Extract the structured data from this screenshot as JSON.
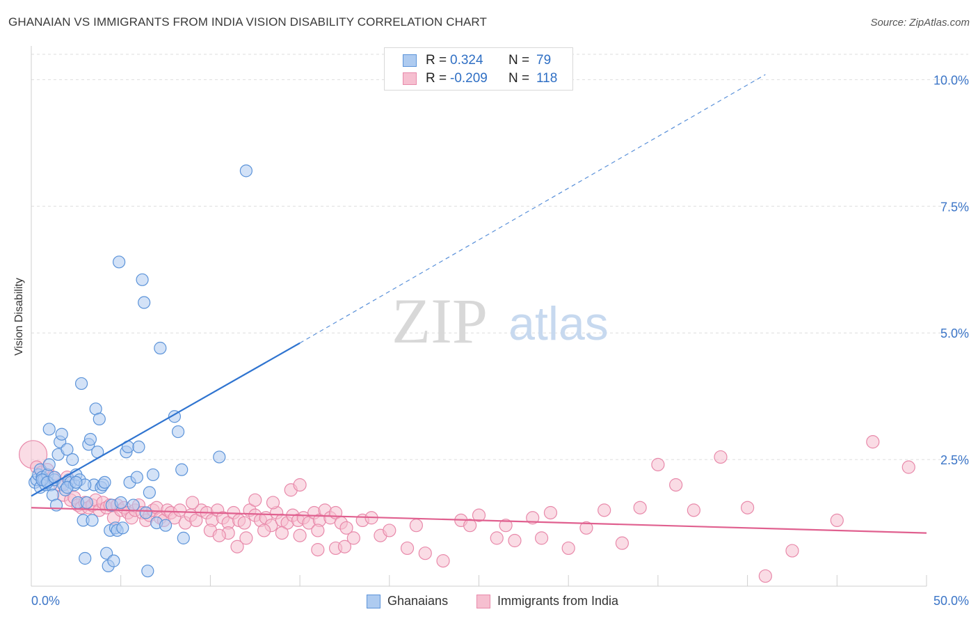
{
  "title": "GHANAIAN VS IMMIGRANTS FROM INDIA VISION DISABILITY CORRELATION CHART",
  "source": "Source: ZipAtlas.com",
  "watermark": {
    "zip": "ZIP",
    "atlas": "atlas"
  },
  "legend": {
    "series1": {
      "r_label": "R =",
      "r_value": "0.324",
      "n_label": "N =",
      "n_value": "79"
    },
    "series2": {
      "r_label": "R =",
      "r_value": "-0.209",
      "n_label": "N =",
      "n_value": "118"
    }
  },
  "colors": {
    "blue_fill": "#aecbf0",
    "blue_stroke": "#5b93d9",
    "blue_line": "#2f74d0",
    "pink_fill": "#f6bfd0",
    "pink_stroke": "#e889aa",
    "pink_line": "#e0608f",
    "axis_text": "#3b75c7",
    "grid": "#dedede"
  },
  "chart_data": {
    "type": "scatter",
    "title": "GHANAIAN VS IMMIGRANTS FROM INDIA VISION DISABILITY CORRELATION CHART",
    "xlabel": "",
    "ylabel": "Vision Disability",
    "xlim": [
      0,
      50
    ],
    "ylim": [
      0,
      10.5
    ],
    "x_tick_labels": [
      "0.0%",
      "50.0%"
    ],
    "y_ticks": [
      2.5,
      5.0,
      7.5,
      10.0
    ],
    "y_tick_labels": [
      "2.5%",
      "5.0%",
      "7.5%",
      "10.0%"
    ],
    "legend_position": "top-center",
    "series": [
      {
        "name": "Ghanaians",
        "r": 0.324,
        "n": 79,
        "trend": {
          "x0": 0,
          "y0": 1.78,
          "x1": 15,
          "y1": 4.8,
          "dashed_to_x": 41,
          "dashed_to_y": 10.1
        },
        "points": [
          [
            0.2,
            2.05
          ],
          [
            0.3,
            2.1
          ],
          [
            0.4,
            2.2
          ],
          [
            0.5,
            2.3
          ],
          [
            0.5,
            1.95
          ],
          [
            0.6,
            2.15
          ],
          [
            0.7,
            2.1
          ],
          [
            0.8,
            2.0
          ],
          [
            0.9,
            2.2
          ],
          [
            1.0,
            2.4
          ],
          [
            1.1,
            2.0
          ],
          [
            1.2,
            1.8
          ],
          [
            1.3,
            2.1
          ],
          [
            1.4,
            1.6
          ],
          [
            1.5,
            2.6
          ],
          [
            1.6,
            2.85
          ],
          [
            1.7,
            3.0
          ],
          [
            1.8,
            2.0
          ],
          [
            1.9,
            1.9
          ],
          [
            2.0,
            2.7
          ],
          [
            2.1,
            2.1
          ],
          [
            2.2,
            2.05
          ],
          [
            2.3,
            2.5
          ],
          [
            2.4,
            2.0
          ],
          [
            2.5,
            2.2
          ],
          [
            2.6,
            1.65
          ],
          [
            2.7,
            2.1
          ],
          [
            2.8,
            4.0
          ],
          [
            2.9,
            1.3
          ],
          [
            3.0,
            0.55
          ],
          [
            3.1,
            1.65
          ],
          [
            3.2,
            2.8
          ],
          [
            3.3,
            2.9
          ],
          [
            3.4,
            1.3
          ],
          [
            3.5,
            2.0
          ],
          [
            3.6,
            3.5
          ],
          [
            3.7,
            2.65
          ],
          [
            3.8,
            3.3
          ],
          [
            3.9,
            1.95
          ],
          [
            4.0,
            2.0
          ],
          [
            4.1,
            2.05
          ],
          [
            4.2,
            0.65
          ],
          [
            4.3,
            0.4
          ],
          [
            4.4,
            1.1
          ],
          [
            4.5,
            1.6
          ],
          [
            4.6,
            0.5
          ],
          [
            4.7,
            1.15
          ],
          [
            4.8,
            1.1
          ],
          [
            4.9,
            6.4
          ],
          [
            5.0,
            1.65
          ],
          [
            5.1,
            1.15
          ],
          [
            5.3,
            2.65
          ],
          [
            5.4,
            2.75
          ],
          [
            5.5,
            2.05
          ],
          [
            5.7,
            1.6
          ],
          [
            5.9,
            2.15
          ],
          [
            6.0,
            2.75
          ],
          [
            6.2,
            6.05
          ],
          [
            6.3,
            5.6
          ],
          [
            6.4,
            1.45
          ],
          [
            6.6,
            1.85
          ],
          [
            6.8,
            2.2
          ],
          [
            7.0,
            1.25
          ],
          [
            7.2,
            4.7
          ],
          [
            7.5,
            1.2
          ],
          [
            8.0,
            3.35
          ],
          [
            8.2,
            3.05
          ],
          [
            8.4,
            2.3
          ],
          [
            8.5,
            0.95
          ],
          [
            10.5,
            2.55
          ],
          [
            12.0,
            8.2
          ],
          [
            0.6,
            2.1
          ],
          [
            0.9,
            2.05
          ],
          [
            1.3,
            2.15
          ],
          [
            2.0,
            1.95
          ],
          [
            3.0,
            2.0
          ],
          [
            6.5,
            0.3
          ],
          [
            1.0,
            3.1
          ],
          [
            2.5,
            2.05
          ]
        ]
      },
      {
        "name": "Immigrants from India",
        "r": -0.209,
        "n": 118,
        "trend": {
          "x0": 0,
          "y0": 1.55,
          "x1": 50,
          "y1": 1.05
        },
        "points": [
          [
            0.1,
            2.6
          ],
          [
            0.3,
            2.35
          ],
          [
            0.6,
            2.25
          ],
          [
            0.9,
            2.3
          ],
          [
            1.2,
            2.15
          ],
          [
            1.6,
            2.0
          ],
          [
            1.8,
            1.8
          ],
          [
            2.0,
            2.15
          ],
          [
            2.2,
            1.7
          ],
          [
            2.4,
            1.75
          ],
          [
            2.6,
            1.6
          ],
          [
            2.8,
            1.55
          ],
          [
            3.0,
            1.65
          ],
          [
            3.2,
            1.55
          ],
          [
            3.4,
            1.6
          ],
          [
            3.6,
            1.7
          ],
          [
            3.8,
            1.5
          ],
          [
            4.0,
            1.65
          ],
          [
            4.2,
            1.55
          ],
          [
            4.4,
            1.6
          ],
          [
            4.6,
            1.35
          ],
          [
            4.8,
            1.6
          ],
          [
            5.0,
            1.5
          ],
          [
            5.2,
            1.55
          ],
          [
            5.4,
            1.45
          ],
          [
            5.6,
            1.35
          ],
          [
            5.8,
            1.5
          ],
          [
            6.0,
            1.6
          ],
          [
            6.2,
            1.45
          ],
          [
            6.4,
            1.3
          ],
          [
            6.6,
            1.4
          ],
          [
            6.8,
            1.5
          ],
          [
            7.0,
            1.55
          ],
          [
            7.2,
            1.35
          ],
          [
            7.4,
            1.3
          ],
          [
            7.6,
            1.5
          ],
          [
            7.8,
            1.45
          ],
          [
            8.0,
            1.35
          ],
          [
            8.3,
            1.5
          ],
          [
            8.6,
            1.25
          ],
          [
            8.9,
            1.4
          ],
          [
            9.2,
            1.3
          ],
          [
            9.5,
            1.5
          ],
          [
            9.8,
            1.45
          ],
          [
            10.1,
            1.3
          ],
          [
            10.4,
            1.5
          ],
          [
            10.7,
            1.35
          ],
          [
            11.0,
            1.25
          ],
          [
            11.3,
            1.45
          ],
          [
            11.6,
            1.3
          ],
          [
            11.9,
            1.25
          ],
          [
            12.2,
            1.5
          ],
          [
            12.5,
            1.4
          ],
          [
            12.8,
            1.3
          ],
          [
            13.1,
            1.35
          ],
          [
            13.4,
            1.2
          ],
          [
            13.7,
            1.45
          ],
          [
            14.0,
            1.3
          ],
          [
            14.3,
            1.25
          ],
          [
            14.6,
            1.4
          ],
          [
            14.9,
            1.3
          ],
          [
            15.2,
            1.35
          ],
          [
            15.5,
            1.25
          ],
          [
            15.8,
            1.45
          ],
          [
            16.1,
            1.3
          ],
          [
            16.4,
            1.5
          ],
          [
            16.7,
            1.35
          ],
          [
            17.0,
            1.45
          ],
          [
            17.3,
            1.25
          ],
          [
            17.6,
            1.15
          ],
          [
            9.0,
            1.65
          ],
          [
            10.0,
            1.1
          ],
          [
            11.0,
            1.05
          ],
          [
            12.0,
            0.95
          ],
          [
            13.0,
            1.1
          ],
          [
            14.0,
            1.05
          ],
          [
            15.0,
            1.0
          ],
          [
            16.0,
            1.1
          ],
          [
            17.0,
            0.75
          ],
          [
            18.0,
            0.95
          ],
          [
            10.5,
            1.0
          ],
          [
            11.5,
            0.78
          ],
          [
            12.5,
            1.7
          ],
          [
            13.5,
            1.65
          ],
          [
            14.5,
            1.9
          ],
          [
            15.0,
            2.0
          ],
          [
            16.0,
            0.72
          ],
          [
            17.5,
            0.78
          ],
          [
            18.5,
            1.3
          ],
          [
            19.0,
            1.35
          ],
          [
            19.5,
            1.0
          ],
          [
            20.0,
            1.1
          ],
          [
            21.0,
            0.75
          ],
          [
            21.5,
            1.2
          ],
          [
            22.0,
            0.65
          ],
          [
            23.0,
            0.5
          ],
          [
            24.0,
            1.3
          ],
          [
            24.5,
            1.2
          ],
          [
            25.0,
            1.4
          ],
          [
            26.0,
            0.95
          ],
          [
            26.5,
            1.2
          ],
          [
            27.0,
            0.9
          ],
          [
            28.0,
            1.35
          ],
          [
            28.5,
            0.95
          ],
          [
            29.0,
            1.45
          ],
          [
            30.0,
            0.75
          ],
          [
            31.0,
            1.15
          ],
          [
            32.0,
            1.5
          ],
          [
            33.0,
            0.85
          ],
          [
            34.0,
            1.55
          ],
          [
            35.0,
            2.4
          ],
          [
            36.0,
            2.0
          ],
          [
            37.0,
            1.5
          ],
          [
            38.5,
            2.55
          ],
          [
            40.0,
            1.55
          ],
          [
            41.0,
            0.2
          ],
          [
            42.5,
            0.7
          ],
          [
            45.0,
            1.3
          ],
          [
            47.0,
            2.85
          ],
          [
            49.0,
            2.35
          ]
        ]
      }
    ]
  },
  "bottom_legend": {
    "series1": "Ghanaians",
    "series2": "Immigrants from India"
  }
}
